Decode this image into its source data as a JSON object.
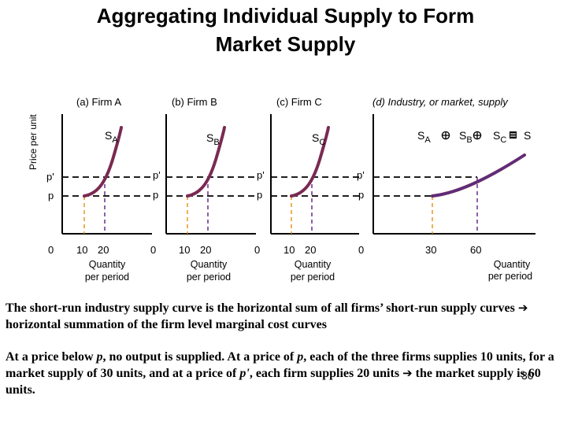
{
  "title_line1": "Aggregating Individual Supply to Form",
  "title_line2": "Market Supply",
  "y_axis_label": "Price per unit",
  "colors": {
    "curve": "#7a2a52",
    "curve_marker": "#5a2d82",
    "dashed_orange": "#e8961e",
    "dashed_purple": "#6a2c8e",
    "axis": "#000000"
  },
  "panels": [
    {
      "id": "a",
      "title": "(a) Firm A",
      "curve_label": "S",
      "curve_sub": "A",
      "price_high": "p'",
      "price_low": "p",
      "origin": "0",
      "ticks": [
        "10",
        "20"
      ],
      "x_label_1": "Quantity",
      "x_label_2": "per period"
    },
    {
      "id": "b",
      "title": "(b) Firm B",
      "curve_label": "S",
      "curve_sub": "B",
      "price_high": "p'",
      "price_low": "p",
      "origin": "0",
      "ticks": [
        "10",
        "20"
      ],
      "x_label_1": "Quantity",
      "x_label_2": "per period"
    },
    {
      "id": "c",
      "title": "(c) Firm C",
      "curve_label": "S",
      "curve_sub": "C",
      "price_high": "p'",
      "price_low": "p",
      "origin": "0",
      "ticks": [
        "10",
        "20"
      ],
      "x_label_1": "Quantity",
      "x_label_2": "per period"
    },
    {
      "id": "d",
      "title": "(d) Industry, or market, supply",
      "price_high": "p'",
      "price_low": "p",
      "origin": "0",
      "ticks": [
        "30",
        "60"
      ],
      "x_label_1": "Quantity",
      "x_label_2": "per period",
      "sum_label": {
        "s1": "S",
        "s1_sub": "A",
        "s2": "S",
        "s2_sub": "B",
        "s3": "S",
        "s3_sub": "C",
        "result": "S"
      }
    }
  ],
  "caption_1": {
    "text": "The short-run industry supply curve is the horizontal sum of all firms’ short-run supply curves",
    "arrow": "➔",
    "text_after": " horizontal summation of the firm level marginal cost curves"
  },
  "caption_2": {
    "part1": "At a price below ",
    "p1": "p",
    "part2": ", no output is supplied.  At a price of ",
    "p2": "p",
    "part3": ", each of the three firms supplies 10 units, for a market supply of 30 units, and at a price of ",
    "p3": "p'",
    "part4": ", each firm supplies 20 units ",
    "arrow": "➔",
    "part5": " the market supply is 60 units."
  },
  "slide_number": "30"
}
